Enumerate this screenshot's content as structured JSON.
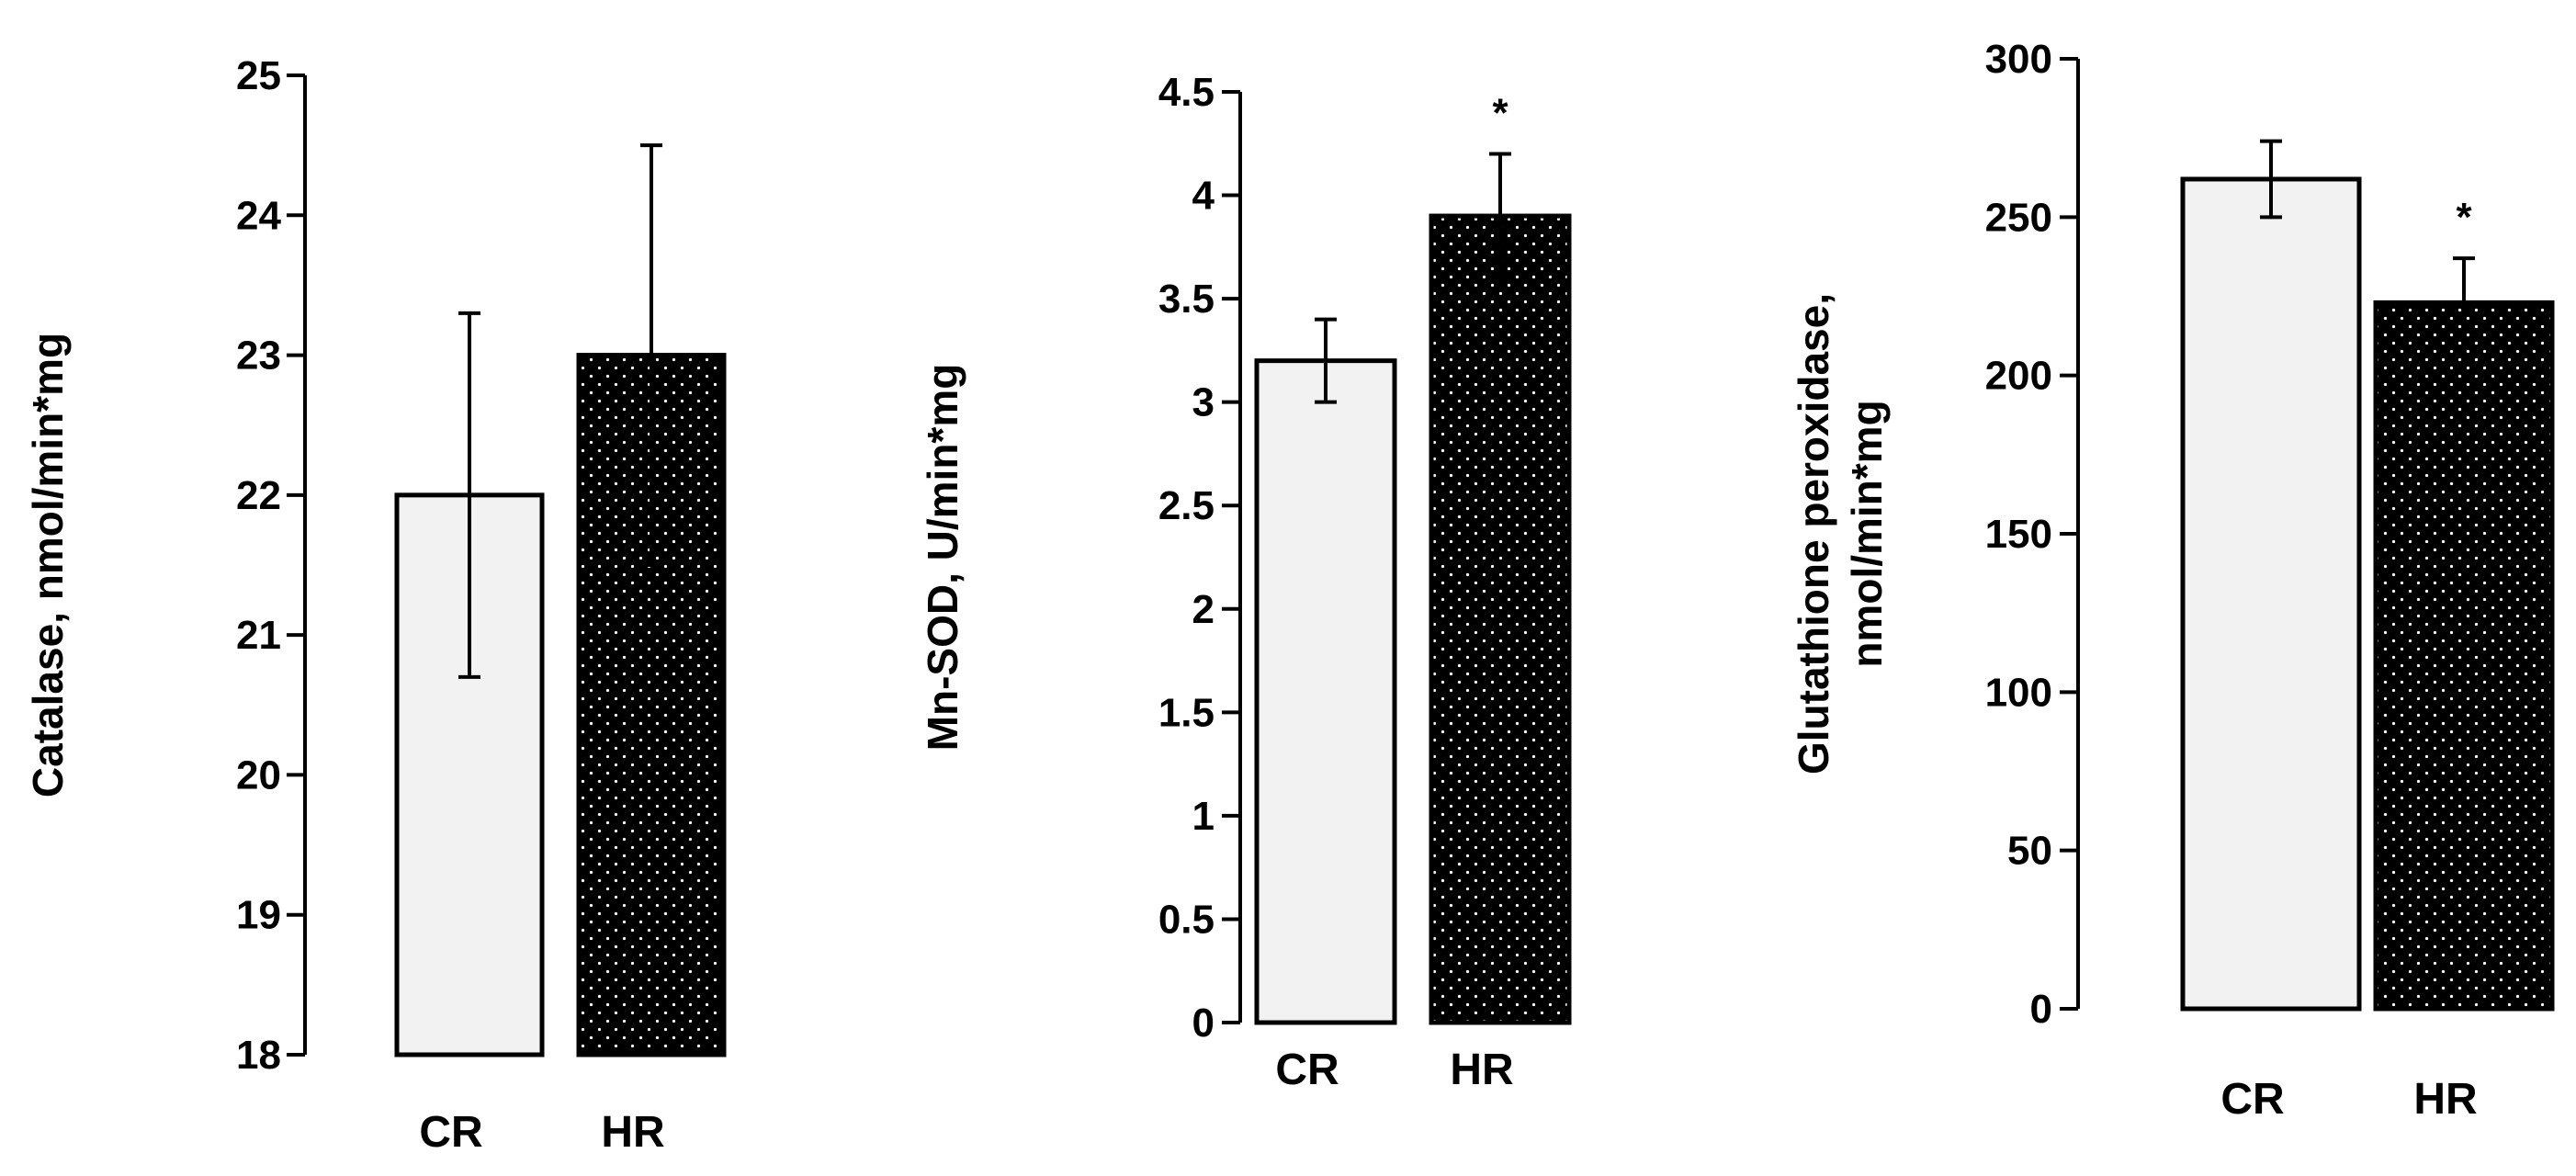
{
  "chart_data": [
    {
      "type": "bar",
      "title": "",
      "xlabel": "",
      "ylabel": "Catalase, nmol/min*mg",
      "categories": [
        "CR",
        "HR"
      ],
      "values": [
        22.0,
        23.0
      ],
      "errors": [
        1.3,
        1.5
      ],
      "significance": [
        "",
        ""
      ],
      "ylim": [
        18,
        25
      ],
      "ticks": [
        "18",
        "19",
        "20",
        "21",
        "22",
        "23",
        "24",
        "25"
      ],
      "grid": false,
      "legend": "none",
      "bar_styles": [
        "light",
        "dotted"
      ]
    },
    {
      "type": "bar",
      "title": "",
      "xlabel": "",
      "ylabel": "Mn-SOD, U/min*mg",
      "categories": [
        "CR",
        "HR"
      ],
      "values": [
        3.2,
        3.9
      ],
      "errors": [
        0.2,
        0.3
      ],
      "significance": [
        "",
        "*"
      ],
      "ylim": [
        0,
        4.5
      ],
      "ticks": [
        "0",
        "0.5",
        "1",
        "1.5",
        "2",
        "2.5",
        "3",
        "3.5",
        "4",
        "4.5"
      ],
      "grid": false,
      "legend": "none",
      "bar_styles": [
        "light",
        "dotted"
      ]
    },
    {
      "type": "bar",
      "title": "",
      "xlabel": "",
      "ylabel": [
        "Glutathione peroxidase,",
        "nmol/min*mg"
      ],
      "categories": [
        "CR",
        "HR"
      ],
      "values": [
        262,
        223
      ],
      "errors": [
        12,
        14
      ],
      "significance": [
        "",
        "*"
      ],
      "ylim": [
        0,
        300
      ],
      "ticks": [
        "0",
        "50",
        "100",
        "150",
        "200",
        "250",
        "300"
      ],
      "grid": false,
      "legend": "none",
      "bar_styles": [
        "light",
        "dotted"
      ]
    }
  ],
  "colors": {
    "axis": "#000000",
    "bar_light_fill": "#f2f2f2",
    "bar_dark_fill": "#000000",
    "bar_dot": "#ffffff",
    "error_bar": "#000000"
  }
}
